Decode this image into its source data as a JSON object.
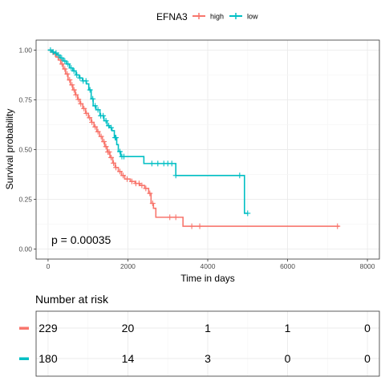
{
  "legend": {
    "title": "EFNA3",
    "items": [
      {
        "label": "high",
        "color": "#F8766D"
      },
      {
        "label": "low",
        "color": "#00BFC4"
      }
    ]
  },
  "chart_data": [
    {
      "type": "line",
      "subtype": "kaplan-meier",
      "xlabel": "Time in days",
      "ylabel": "Survival probability",
      "xlim": [
        -300,
        8300
      ],
      "ylim": [
        -0.05,
        1.05
      ],
      "x_ticks": [
        0,
        2000,
        4000,
        6000,
        8000
      ],
      "x_tick_labels": [
        "0",
        "2000",
        "4000",
        "6000",
        "8000"
      ],
      "y_ticks": [
        0,
        0.25,
        0.5,
        0.75,
        1.0
      ],
      "y_tick_labels": [
        "0.00",
        "0.25",
        "0.50",
        "0.75",
        "1.00"
      ],
      "grid": true,
      "legend_position": "top",
      "annotation": "p = 0.00035",
      "series": [
        {
          "name": "high",
          "color": "#F8766D",
          "steps": [
            [
              0,
              1.0
            ],
            [
              80,
              0.99
            ],
            [
              140,
              0.98
            ],
            [
              200,
              0.965
            ],
            [
              260,
              0.95
            ],
            [
              320,
              0.93
            ],
            [
              380,
              0.905
            ],
            [
              440,
              0.88
            ],
            [
              500,
              0.85
            ],
            [
              560,
              0.825
            ],
            [
              620,
              0.8
            ],
            [
              680,
              0.775
            ],
            [
              740,
              0.752
            ],
            [
              800,
              0.73
            ],
            [
              870,
              0.706
            ],
            [
              940,
              0.682
            ],
            [
              1010,
              0.66
            ],
            [
              1080,
              0.637
            ],
            [
              1150,
              0.614
            ],
            [
              1220,
              0.59
            ],
            [
              1290,
              0.566
            ],
            [
              1360,
              0.54
            ],
            [
              1420,
              0.515
            ],
            [
              1480,
              0.488
            ],
            [
              1550,
              0.46
            ],
            [
              1620,
              0.432
            ],
            [
              1680,
              0.41
            ],
            [
              1760,
              0.39
            ],
            [
              1840,
              0.37
            ],
            [
              1920,
              0.352
            ],
            [
              2060,
              0.34
            ],
            [
              2180,
              0.33
            ],
            [
              2300,
              0.32
            ],
            [
              2420,
              0.305
            ],
            [
              2520,
              0.28
            ],
            [
              2580,
              0.23
            ],
            [
              2640,
              0.205
            ],
            [
              2700,
              0.16
            ],
            [
              3380,
              0.115
            ],
            [
              7300,
              0.115
            ]
          ],
          "censor_times": [
            120,
            180,
            250,
            310,
            350,
            420,
            480,
            540,
            600,
            650,
            700,
            760,
            820,
            900,
            960,
            1040,
            1100,
            1180,
            1250,
            1330,
            1400,
            1450,
            1500,
            1530,
            1580,
            1640,
            1700,
            1800,
            1880,
            1980,
            2100,
            2200,
            2280,
            2350,
            2450,
            2550,
            2620,
            3050,
            3200,
            3600,
            3800,
            7250
          ]
        },
        {
          "name": "low",
          "color": "#00BFC4",
          "steps": [
            [
              0,
              1.0
            ],
            [
              100,
              0.99
            ],
            [
              160,
              0.985
            ],
            [
              220,
              0.975
            ],
            [
              300,
              0.96
            ],
            [
              380,
              0.945
            ],
            [
              460,
              0.93
            ],
            [
              540,
              0.91
            ],
            [
              620,
              0.895
            ],
            [
              700,
              0.875
            ],
            [
              780,
              0.86
            ],
            [
              860,
              0.845
            ],
            [
              960,
              0.83
            ],
            [
              1020,
              0.8
            ],
            [
              1080,
              0.755
            ],
            [
              1130,
              0.72
            ],
            [
              1200,
              0.7
            ],
            [
              1300,
              0.67
            ],
            [
              1400,
              0.645
            ],
            [
              1480,
              0.62
            ],
            [
              1540,
              0.61
            ],
            [
              1600,
              0.595
            ],
            [
              1660,
              0.56
            ],
            [
              1720,
              0.525
            ],
            [
              1760,
              0.49
            ],
            [
              1820,
              0.465
            ],
            [
              2400,
              0.43
            ],
            [
              3200,
              0.37
            ],
            [
              4920,
              0.18
            ],
            [
              5000,
              0.18
            ]
          ],
          "censor_times": [
            60,
            130,
            200,
            260,
            340,
            420,
            500,
            580,
            650,
            720,
            800,
            880,
            950,
            1050,
            1120,
            1180,
            1250,
            1320,
            1380,
            1450,
            1520,
            1580,
            1680,
            1700,
            1800,
            1850,
            1900,
            2600,
            2750,
            2900,
            3000,
            3100,
            3200,
            4800,
            5000
          ]
        }
      ]
    },
    {
      "type": "table",
      "title": "Number at risk",
      "x_ticks": [
        0,
        2000,
        4000,
        6000,
        8000
      ],
      "rows": [
        {
          "name": "high",
          "color": "#F8766D",
          "values": [
            "229",
            "20",
            "1",
            "1",
            "0"
          ]
        },
        {
          "name": "low",
          "color": "#00BFC4",
          "values": [
            "180",
            "14",
            "3",
            "0",
            "0"
          ]
        }
      ]
    }
  ]
}
